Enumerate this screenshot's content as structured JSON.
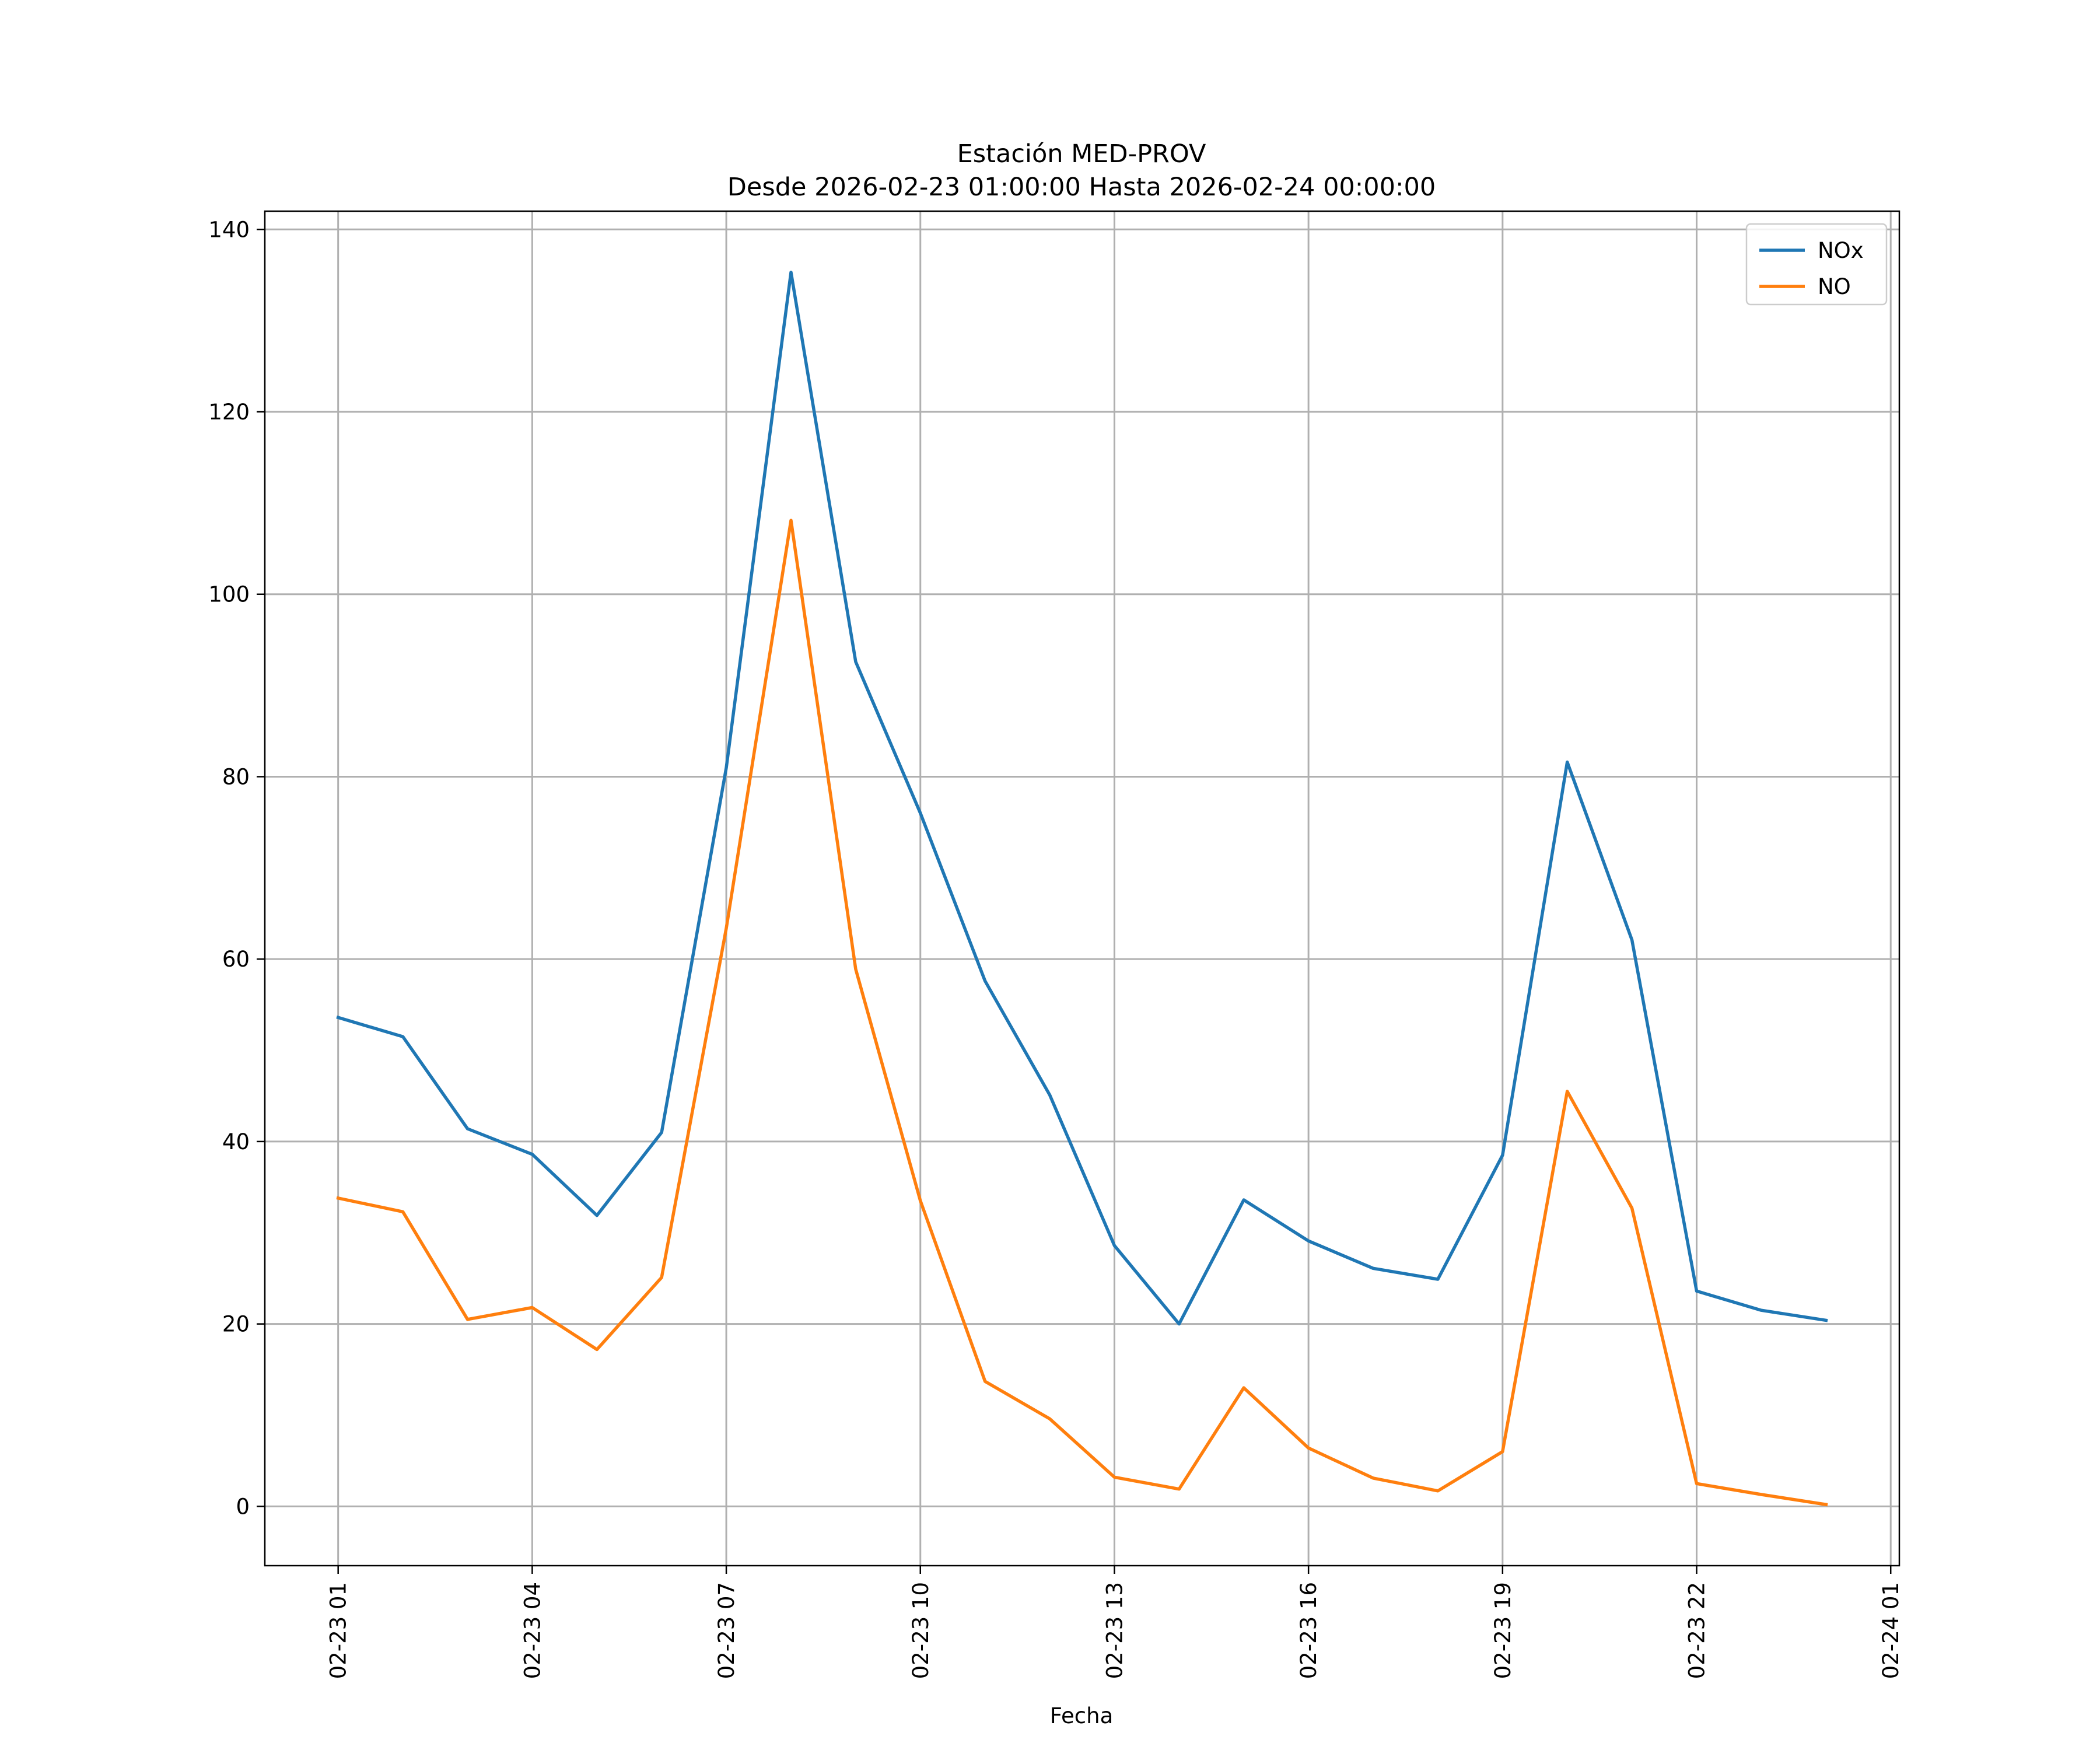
{
  "chart_data": {
    "type": "line",
    "title": "Estación MED-PROV",
    "subtitle": "Desde 2026-02-23 01:00:00 Hasta 2026-02-24 00:00:00",
    "xlabel": "Fecha",
    "ylabel": "",
    "x": [
      "2026-02-23 01:00",
      "2026-02-23 02:00",
      "2026-02-23 03:00",
      "2026-02-23 04:00",
      "2026-02-23 05:00",
      "2026-02-23 06:00",
      "2026-02-23 07:00",
      "2026-02-23 08:00",
      "2026-02-23 09:00",
      "2026-02-23 10:00",
      "2026-02-23 11:00",
      "2026-02-23 12:00",
      "2026-02-23 13:00",
      "2026-02-23 14:00",
      "2026-02-23 15:00",
      "2026-02-23 16:00",
      "2026-02-23 17:00",
      "2026-02-23 18:00",
      "2026-02-23 19:00",
      "2026-02-23 20:00",
      "2026-02-23 21:00",
      "2026-02-23 22:00",
      "2026-02-23 23:00",
      "2026-02-24 00:00"
    ],
    "x_range": [
      "2026-02-22 23:52",
      "2026-02-24 01:08"
    ],
    "ylim": [
      -6.5,
      142
    ],
    "x_ticks": [
      "02-23 01",
      "02-23 04",
      "02-23 07",
      "02-23 10",
      "02-23 13",
      "02-23 16",
      "02-23 19",
      "02-23 22",
      "02-24 01"
    ],
    "y_ticks": [
      0,
      20,
      40,
      60,
      80,
      100,
      120,
      140
    ],
    "grid": true,
    "legend_position": "top-right",
    "series": [
      {
        "name": "NOx",
        "color": "#1f77b4",
        "values": [
          53.6,
          51.5,
          41.4,
          38.6,
          31.9,
          41.0,
          81.0,
          135.3,
          92.6,
          76.0,
          57.6,
          45.1,
          28.6,
          20.0,
          33.6,
          29.1,
          26.1,
          24.9,
          38.5,
          81.6,
          62.1,
          23.6,
          21.5,
          20.4
        ]
      },
      {
        "name": "NO",
        "color": "#ff7f0e",
        "values": [
          33.8,
          32.3,
          20.5,
          21.8,
          17.2,
          25.1,
          63.4,
          108.1,
          58.9,
          33.5,
          13.7,
          9.6,
          3.2,
          1.9,
          13.0,
          6.4,
          3.1,
          1.7,
          6.0,
          45.5,
          32.7,
          2.5,
          1.3,
          0.2
        ]
      }
    ]
  }
}
